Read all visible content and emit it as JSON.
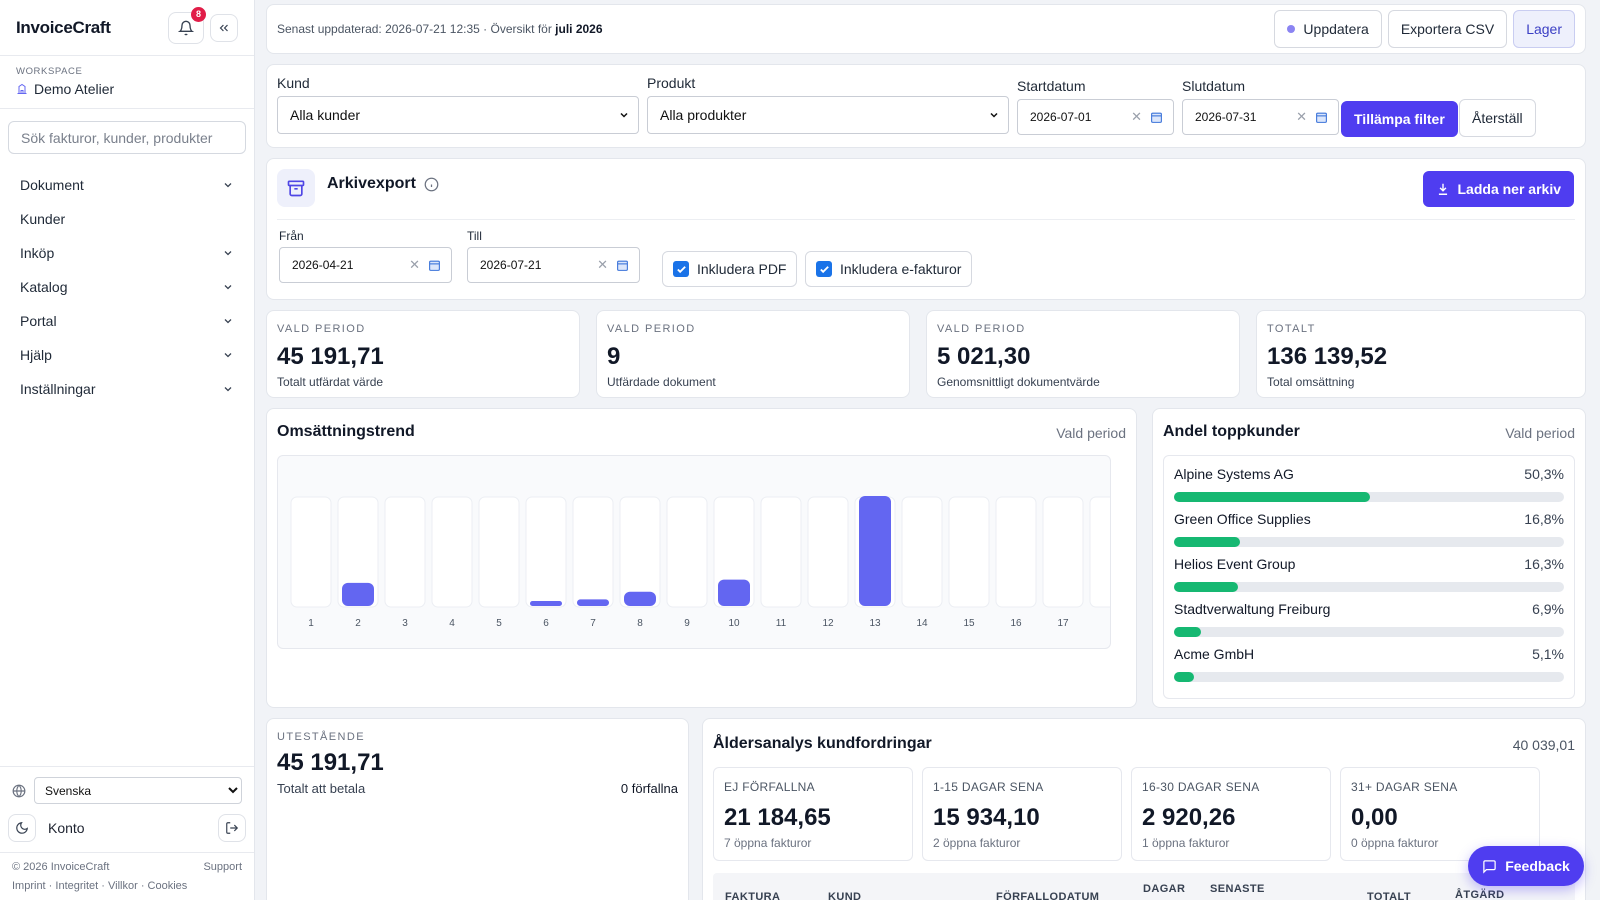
{
  "app": {
    "brand": "InvoiceCraft",
    "notif_count": "8"
  },
  "workspace": {
    "label": "WORKSPACE",
    "name": "Demo Atelier"
  },
  "search": {
    "placeholder": "Sök fakturor, kunder, produkter"
  },
  "nav": [
    {
      "label": "Dokument",
      "has_chevron": true
    },
    {
      "label": "Kunder",
      "has_chevron": false
    },
    {
      "label": "Inköp",
      "has_chevron": true
    },
    {
      "label": "Katalog",
      "has_chevron": true
    },
    {
      "label": "Portal",
      "has_chevron": true
    },
    {
      "label": "Hjälp",
      "has_chevron": true
    },
    {
      "label": "Inställningar",
      "has_chevron": true
    }
  ],
  "language": {
    "selected": "Svenska"
  },
  "account": {
    "label": "Konto"
  },
  "footer": {
    "copyright": "© 2026 InvoiceCraft",
    "support": "Support",
    "links": [
      "Imprint",
      "Integritet",
      "Villkor",
      "Cookies"
    ]
  },
  "topbar": {
    "status_prefix": "Senast uppdaterad: 2026-07-21 12:35 · Översikt för ",
    "status_month": "juli 2026",
    "refresh": "Uppdatera",
    "export": "Exportera CSV",
    "stock": "Lager"
  },
  "filters": {
    "customer_label": "Kund",
    "customer_value": "Alla kunder",
    "product_label": "Produkt",
    "product_value": "Alla produkter",
    "start_label": "Startdatum",
    "start_value": "2026-07-01",
    "end_label": "Slutdatum",
    "end_value": "2026-07-31",
    "apply": "Tillämpa filter",
    "reset": "Återställ"
  },
  "archive": {
    "title": "Arkivexport",
    "download": "Ladda ner arkiv",
    "from_label": "Från",
    "from_value": "2026-04-21",
    "to_label": "Till",
    "to_value": "2026-07-21",
    "include_pdf": "Inkludera PDF",
    "include_pdf_checked": true,
    "include_einv": "Inkludera e-fakturor",
    "include_einv_checked": true
  },
  "kpis": [
    {
      "label": "VALD PERIOD",
      "value": "45 191,71",
      "sub": "Totalt utfärdat värde"
    },
    {
      "label": "VALD PERIOD",
      "value": "9",
      "sub": "Utfärdade dokument"
    },
    {
      "label": "VALD PERIOD",
      "value": "5 021,30",
      "sub": "Genomsnittligt dokumentvärde"
    },
    {
      "label": "TOTALT",
      "value": "136 139,52",
      "sub": "Total omsättning"
    }
  ],
  "trend": {
    "title": "Omsättningstrend",
    "meta": "Vald period"
  },
  "chart_data": {
    "type": "bar",
    "title": "Omsättningstrend",
    "categories": [
      "1",
      "2",
      "3",
      "4",
      "5",
      "6",
      "7",
      "8",
      "9",
      "10",
      "11",
      "12",
      "13",
      "14",
      "15",
      "16",
      "17"
    ],
    "values": [
      0,
      21,
      0,
      0,
      0,
      4,
      6,
      13,
      0,
      24,
      0,
      0,
      100,
      0,
      0,
      0,
      0
    ],
    "ylim": [
      0,
      100
    ],
    "xlabel": "",
    "ylabel": "",
    "bar_color": "#6366f1"
  },
  "share": {
    "title": "Andel toppkunder",
    "meta": "Vald period",
    "rows": [
      {
        "name": "Alpine Systems AG",
        "pct": "50,3%",
        "value": 50.3
      },
      {
        "name": "Green Office Supplies",
        "pct": "16,8%",
        "value": 16.8
      },
      {
        "name": "Helios Event Group",
        "pct": "16,3%",
        "value": 16.3
      },
      {
        "name": "Stadtverwaltung Freiburg",
        "pct": "6,9%",
        "value": 6.9
      },
      {
        "name": "Acme GmbH",
        "pct": "5,1%",
        "value": 5.1
      }
    ]
  },
  "outstanding": {
    "label": "UTESTÅENDE",
    "value": "45 191,71",
    "sub": "Totalt att betala",
    "overdue": "0 förfallna"
  },
  "aging": {
    "title": "Åldersanalys kundfordringar",
    "total": "40 039,01",
    "buckets": [
      {
        "label": "EJ FÖRFALLNA",
        "value": "21 184,65",
        "sub": "7 öppna fakturor"
      },
      {
        "label": "1-15 DAGAR SENA",
        "value": "15 934,10",
        "sub": "2 öppna fakturor"
      },
      {
        "label": "16-30 DAGAR SENA",
        "value": "2 920,26",
        "sub": "1 öppna fakturor"
      },
      {
        "label": "31+ DAGAR SENA",
        "value": "0,00",
        "sub": "0 öppna fakturor"
      }
    ],
    "columns": [
      "FAKTURA",
      "KUND",
      "FÖRFALLODATUM",
      "DAGAR",
      "SENASTE",
      "TOTALT",
      "ÅTGÄRD"
    ]
  },
  "feedback": {
    "label": "Feedback"
  },
  "colors": {
    "accent": "#4f3df0",
    "bar": "#6366f1",
    "share": "#16b872",
    "badge": "#e11d48"
  }
}
